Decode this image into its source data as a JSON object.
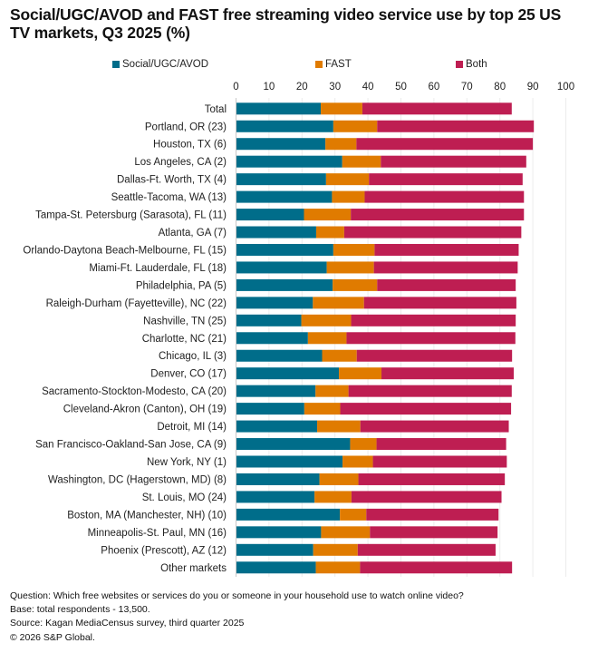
{
  "chart_data": {
    "type": "bar",
    "orientation": "horizontal",
    "stacked": true,
    "title": "Social/UGC/AVOD and FAST free streaming video service use by top 25 US TV markets, Q3 2025 (%)",
    "title_lines": [
      "Social/UGC/AVOD and FAST free streaming video service use by top 25 US",
      "TV markets, Q3 2025 (%)"
    ],
    "xlabel": "",
    "ylabel": "",
    "xlim": [
      0,
      100
    ],
    "xticks": [
      0,
      10,
      20,
      30,
      40,
      50,
      60,
      70,
      80,
      90,
      100
    ],
    "xtick_position": "top",
    "grid": true,
    "legend_position": "top",
    "categories": [
      "Total",
      "Portland, OR (23)",
      "Houston, TX (6)",
      "Los Angeles, CA (2)",
      "Dallas-Ft. Worth, TX (4)",
      "Seattle-Tacoma, WA (13)",
      "Tampa-St. Petersburg (Sarasota), FL (11)",
      "Atlanta, GA (7)",
      "Orlando-Daytona Beach-Melbourne, FL (15)",
      "Miami-Ft. Lauderdale, FL (18)",
      "Philadelphia, PA (5)",
      "Raleigh-Durham (Fayetteville), NC (22)",
      "Nashville, TN (25)",
      "Charlotte, NC (21)",
      "Chicago, IL (3)",
      "Denver, CO (17)",
      "Sacramento-Stockton-Modesto, CA (20)",
      "Cleveland-Akron (Canton), OH (19)",
      "Detroit, MI (14)",
      "San Francisco-Oakland-San Jose, CA (9)",
      "New York, NY (1)",
      "Washington, DC (Hagerstown, MD) (8)",
      "St. Louis, MO (24)",
      "Boston, MA (Manchester, NH) (10)",
      "Minneapolis-St. Paul, MN (16)",
      "Phoenix (Prescott), AZ (12)",
      "Other markets"
    ],
    "series": [
      {
        "name": "Social/UGC/AVOD",
        "color": "#006d8a",
        "values": [
          25.7,
          29.5,
          27.1,
          32.2,
          27.3,
          29.1,
          20.6,
          24.3,
          29.5,
          27.5,
          29.3,
          23.3,
          19.8,
          21.8,
          26.1,
          31.2,
          24.1,
          20.7,
          24.6,
          34.6,
          32.3,
          25.3,
          23.8,
          31.5,
          25.8,
          23.4,
          24.2
        ]
      },
      {
        "name": "FAST",
        "color": "#e07b00",
        "values": [
          12.6,
          13.3,
          9.4,
          11.7,
          13.0,
          9.9,
          14.2,
          8.5,
          12.5,
          14.3,
          13.5,
          15.5,
          15.1,
          11.7,
          10.5,
          12.9,
          10.0,
          10.9,
          13.1,
          8.0,
          9.2,
          11.8,
          11.2,
          8.0,
          14.8,
          13.5,
          13.4
        ]
      },
      {
        "name": "Both",
        "color": "#be1e52",
        "values": [
          45.3,
          47.5,
          53.5,
          44.1,
          46.6,
          48.3,
          52.5,
          53.7,
          43.7,
          43.6,
          42.0,
          46.2,
          49.9,
          51.2,
          47.1,
          40.1,
          49.5,
          51.8,
          45.0,
          39.3,
          40.6,
          44.4,
          45.5,
          40.1,
          38.7,
          41.8,
          46.1
        ]
      }
    ]
  },
  "legend": [
    {
      "label": "Social/UGC/AVOD",
      "color": "#006d8a"
    },
    {
      "label": "FAST",
      "color": "#e07b00"
    },
    {
      "label": "Both",
      "color": "#be1e52"
    }
  ],
  "footer": {
    "question": "Question: Which free websites or services do you or someone in your household use to watch online video?",
    "base": "Base: total respondents - 13,500.",
    "source": "Source: Kagan MediaCensus survey, third quarter 2025",
    "copyright": "© 2026 S&P Global."
  }
}
